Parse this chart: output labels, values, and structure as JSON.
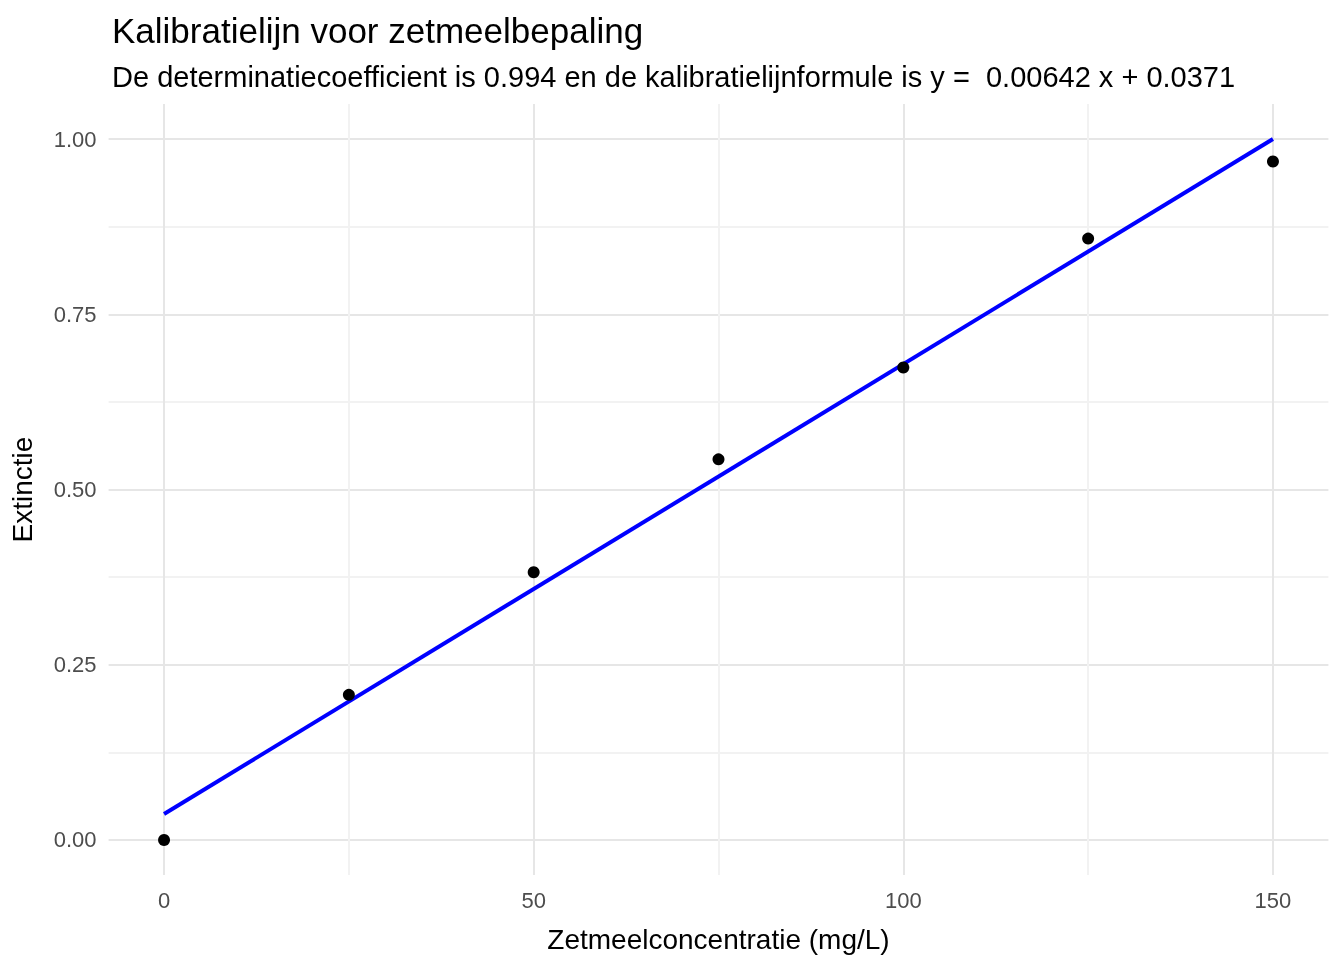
{
  "chart_data": {
    "type": "scatter",
    "title": "Kalibratielijn voor zetmeelbepaling",
    "subtitle": "De determinatiecoefficient is 0.994 en de kalibratielijnformule is y =  0.00642 x + 0.0371",
    "xlabel": "Zetmeelconcentratie (mg/L)",
    "ylabel": "Extinctie",
    "x": [
      0,
      25,
      50,
      75,
      100,
      125,
      150
    ],
    "series": [
      {
        "color": "#000000",
        "values": [
          0,
          0.207,
          0.382,
          0.543,
          0.674,
          0.858,
          0.968
        ]
      },
      {
        "type": "line",
        "color": "#0000ff",
        "x": [
          0,
          150
        ],
        "values": [
          0.037,
          1.0
        ],
        "marker": "none",
        "line_style": "solid"
      }
    ],
    "xlim": [
      -7.5,
      157.5
    ],
    "ylim": [
      -0.05,
      1.05
    ],
    "xticks": [
      0,
      {
        "value": 25,
        "label": null
      },
      50,
      {
        "value": 75,
        "label": null
      },
      100,
      {
        "value": 125,
        "label": null
      },
      150
    ],
    "yticks": [
      {
        "value": 0,
        "label": "0.00"
      },
      {
        "value": 0.125,
        "label": null
      },
      {
        "value": 0.25,
        "label": "0.25"
      },
      {
        "value": 0.375,
        "label": null
      },
      {
        "value": 0.5,
        "label": "0.50"
      },
      {
        "value": 0.625,
        "label": null
      },
      {
        "value": 0.75,
        "label": "0.75"
      },
      {
        "value": 0.875,
        "label": null
      },
      {
        "value": 1,
        "label": "1.00"
      }
    ],
    "grid": true,
    "marker": "circle"
  }
}
